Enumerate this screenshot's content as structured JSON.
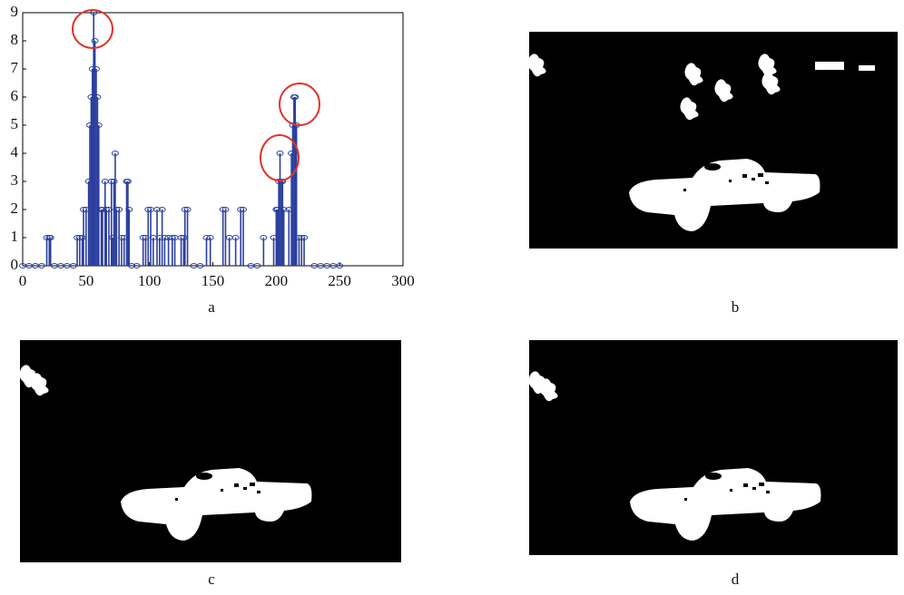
{
  "chart_data": {
    "type": "stem",
    "x": [
      0,
      5,
      10,
      15,
      19,
      21,
      22,
      25,
      30,
      35,
      40,
      43,
      45,
      47,
      48,
      50,
      52,
      53,
      54,
      55,
      56,
      57,
      58,
      59,
      60,
      62,
      63,
      65,
      66,
      68,
      70,
      71,
      72,
      73,
      74,
      76,
      78,
      80,
      82,
      83,
      84,
      86,
      90,
      95,
      97,
      99,
      101,
      103,
      106,
      108,
      110,
      112,
      115,
      118,
      120,
      125,
      127,
      128,
      130,
      135,
      140,
      145,
      148,
      158,
      160,
      163,
      168,
      172,
      174,
      180,
      185,
      190,
      198,
      200,
      201,
      202,
      203,
      204,
      205,
      206,
      210,
      212,
      213,
      214,
      215,
      216,
      218,
      220,
      222,
      230,
      235,
      240,
      245,
      250
    ],
    "values": [
      0,
      0,
      0,
      0,
      1,
      1,
      1,
      0,
      0,
      0,
      0,
      1,
      1,
      1,
      2,
      2,
      3,
      5,
      6,
      7,
      9,
      8,
      7,
      6,
      5,
      2,
      2,
      3,
      2,
      2,
      3,
      1,
      3,
      4,
      2,
      2,
      1,
      1,
      3,
      3,
      2,
      0,
      0,
      1,
      1,
      2,
      2,
      1,
      2,
      1,
      2,
      1,
      1,
      1,
      1,
      1,
      1,
      2,
      2,
      0,
      0,
      1,
      1,
      2,
      2,
      1,
      1,
      2,
      2,
      0,
      0,
      1,
      1,
      2,
      2,
      3,
      4,
      3,
      3,
      2,
      2,
      4,
      5,
      6,
      6,
      5,
      1,
      1,
      1,
      0,
      0,
      0,
      0,
      0
    ],
    "color": "#2b3f9e",
    "xlim": [
      0,
      300
    ],
    "ylim": [
      0,
      9
    ],
    "xticks": [
      0,
      50,
      100,
      150,
      200,
      250,
      300
    ],
    "yticks": [
      0,
      1,
      2,
      3,
      4,
      5,
      6,
      7,
      8,
      9
    ]
  },
  "panels": {
    "labels": [
      "a",
      "b",
      "c",
      "d"
    ]
  }
}
